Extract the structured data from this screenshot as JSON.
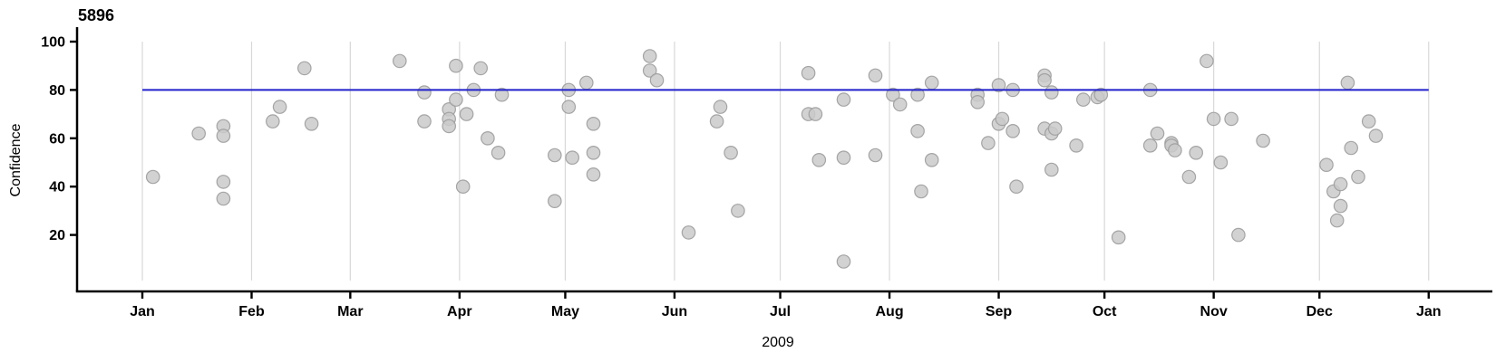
{
  "chart": {
    "title": "5896",
    "ylabel": "Confidence",
    "xlabel": "2009"
  },
  "chart_data": {
    "type": "scatter",
    "title": "5896",
    "xlabel": "2009",
    "ylabel": "Confidence",
    "x_axis": {
      "year": "2009",
      "tick_labels": [
        "Jan",
        "Feb",
        "Mar",
        "Apr",
        "May",
        "Jun",
        "Jul",
        "Aug",
        "Sep",
        "Oct",
        "Nov",
        "Dec",
        "Jan"
      ],
      "range_days": [
        0,
        365
      ]
    },
    "y_axis": {
      "ticks": [
        20,
        40,
        60,
        80,
        100
      ],
      "range": [
        -4,
        106
      ]
    },
    "grid": "vertical-month-gridlines-only",
    "legend": "none",
    "reference_line": {
      "y": 80,
      "color": "#2222cc"
    },
    "colors": {
      "point_fill": "#cacaca",
      "point_stroke": "#9c9c9c",
      "gridline": "#d8d8d8",
      "axis": "#000000",
      "background": "#ffffff"
    },
    "point_radius": 7.2,
    "points": [
      {
        "m": "Jan",
        "d": 4,
        "v": 44
      },
      {
        "m": "Jan",
        "d": 17,
        "v": 62
      },
      {
        "m": "Jan",
        "d": 24,
        "v": 65
      },
      {
        "m": "Jan",
        "d": 24,
        "v": 61
      },
      {
        "m": "Jan",
        "d": 24,
        "v": 42
      },
      {
        "m": "Jan",
        "d": 24,
        "v": 35
      },
      {
        "m": "Feb",
        "d": 7,
        "v": 67
      },
      {
        "m": "Feb",
        "d": 9,
        "v": 73
      },
      {
        "m": "Feb",
        "d": 16,
        "v": 89
      },
      {
        "m": "Feb",
        "d": 18,
        "v": 66
      },
      {
        "m": "Mar",
        "d": 15,
        "v": 92
      },
      {
        "m": "Mar",
        "d": 22,
        "v": 79
      },
      {
        "m": "Mar",
        "d": 22,
        "v": 67
      },
      {
        "m": "Mar",
        "d": 29,
        "v": 72
      },
      {
        "m": "Mar",
        "d": 29,
        "v": 68
      },
      {
        "m": "Mar",
        "d": 29,
        "v": 65
      },
      {
        "m": "Mar",
        "d": 31,
        "v": 90
      },
      {
        "m": "Mar",
        "d": 31,
        "v": 76
      },
      {
        "m": "Apr",
        "d": 2,
        "v": 40
      },
      {
        "m": "Apr",
        "d": 3,
        "v": 70
      },
      {
        "m": "Apr",
        "d": 5,
        "v": 80
      },
      {
        "m": "Apr",
        "d": 7,
        "v": 89
      },
      {
        "m": "Apr",
        "d": 9,
        "v": 60
      },
      {
        "m": "Apr",
        "d": 12,
        "v": 54
      },
      {
        "m": "Apr",
        "d": 13,
        "v": 78
      },
      {
        "m": "Apr",
        "d": 28,
        "v": 53
      },
      {
        "m": "Apr",
        "d": 28,
        "v": 34
      },
      {
        "m": "May",
        "d": 2,
        "v": 80
      },
      {
        "m": "May",
        "d": 2,
        "v": 73
      },
      {
        "m": "May",
        "d": 3,
        "v": 52
      },
      {
        "m": "May",
        "d": 7,
        "v": 83
      },
      {
        "m": "May",
        "d": 9,
        "v": 66
      },
      {
        "m": "May",
        "d": 9,
        "v": 54
      },
      {
        "m": "May",
        "d": 9,
        "v": 45
      },
      {
        "m": "May",
        "d": 25,
        "v": 94
      },
      {
        "m": "May",
        "d": 25,
        "v": 88
      },
      {
        "m": "May",
        "d": 27,
        "v": 84
      },
      {
        "m": "Jun",
        "d": 5,
        "v": 21
      },
      {
        "m": "Jun",
        "d": 13,
        "v": 67
      },
      {
        "m": "Jun",
        "d": 14,
        "v": 73
      },
      {
        "m": "Jun",
        "d": 17,
        "v": 54
      },
      {
        "m": "Jun",
        "d": 19,
        "v": 30
      },
      {
        "m": "Jul",
        "d": 9,
        "v": 87
      },
      {
        "m": "Jul",
        "d": 9,
        "v": 70
      },
      {
        "m": "Jul",
        "d": 11,
        "v": 70
      },
      {
        "m": "Jul",
        "d": 12,
        "v": 51
      },
      {
        "m": "Jul",
        "d": 19,
        "v": 76
      },
      {
        "m": "Jul",
        "d": 19,
        "v": 52
      },
      {
        "m": "Jul",
        "d": 19,
        "v": 9
      },
      {
        "m": "Jul",
        "d": 28,
        "v": 86
      },
      {
        "m": "Jul",
        "d": 28,
        "v": 53
      },
      {
        "m": "Aug",
        "d": 2,
        "v": 78
      },
      {
        "m": "Aug",
        "d": 4,
        "v": 74
      },
      {
        "m": "Aug",
        "d": 9,
        "v": 78
      },
      {
        "m": "Aug",
        "d": 9,
        "v": 63
      },
      {
        "m": "Aug",
        "d": 10,
        "v": 38
      },
      {
        "m": "Aug",
        "d": 13,
        "v": 83
      },
      {
        "m": "Aug",
        "d": 13,
        "v": 51
      },
      {
        "m": "Aug",
        "d": 26,
        "v": 78
      },
      {
        "m": "Aug",
        "d": 26,
        "v": 75
      },
      {
        "m": "Aug",
        "d": 29,
        "v": 58
      },
      {
        "m": "Sep",
        "d": 1,
        "v": 82
      },
      {
        "m": "Sep",
        "d": 1,
        "v": 66
      },
      {
        "m": "Sep",
        "d": 2,
        "v": 68
      },
      {
        "m": "Sep",
        "d": 5,
        "v": 80
      },
      {
        "m": "Sep",
        "d": 5,
        "v": 63
      },
      {
        "m": "Sep",
        "d": 6,
        "v": 40
      },
      {
        "m": "Sep",
        "d": 14,
        "v": 86
      },
      {
        "m": "Sep",
        "d": 14,
        "v": 84
      },
      {
        "m": "Sep",
        "d": 14,
        "v": 64
      },
      {
        "m": "Sep",
        "d": 16,
        "v": 79
      },
      {
        "m": "Sep",
        "d": 16,
        "v": 47
      },
      {
        "m": "Sep",
        "d": 16,
        "v": 62
      },
      {
        "m": "Sep",
        "d": 17,
        "v": 64
      },
      {
        "m": "Sep",
        "d": 23,
        "v": 57
      },
      {
        "m": "Sep",
        "d": 25,
        "v": 76
      },
      {
        "m": "Sep",
        "d": 29,
        "v": 77
      },
      {
        "m": "Sep",
        "d": 30,
        "v": 78
      },
      {
        "m": "Oct",
        "d": 5,
        "v": 19
      },
      {
        "m": "Oct",
        "d": 14,
        "v": 80
      },
      {
        "m": "Oct",
        "d": 14,
        "v": 57
      },
      {
        "m": "Oct",
        "d": 16,
        "v": 62
      },
      {
        "m": "Oct",
        "d": 20,
        "v": 58
      },
      {
        "m": "Oct",
        "d": 20,
        "v": 57
      },
      {
        "m": "Oct",
        "d": 21,
        "v": 55
      },
      {
        "m": "Oct",
        "d": 25,
        "v": 44
      },
      {
        "m": "Oct",
        "d": 27,
        "v": 54
      },
      {
        "m": "Oct",
        "d": 30,
        "v": 92
      },
      {
        "m": "Nov",
        "d": 1,
        "v": 68
      },
      {
        "m": "Nov",
        "d": 3,
        "v": 50
      },
      {
        "m": "Nov",
        "d": 6,
        "v": 68
      },
      {
        "m": "Nov",
        "d": 8,
        "v": 20
      },
      {
        "m": "Nov",
        "d": 15,
        "v": 59
      },
      {
        "m": "Dec",
        "d": 3,
        "v": 49
      },
      {
        "m": "Dec",
        "d": 5,
        "v": 38
      },
      {
        "m": "Dec",
        "d": 6,
        "v": 26
      },
      {
        "m": "Dec",
        "d": 7,
        "v": 41
      },
      {
        "m": "Dec",
        "d": 7,
        "v": 32
      },
      {
        "m": "Dec",
        "d": 9,
        "v": 83
      },
      {
        "m": "Dec",
        "d": 10,
        "v": 56
      },
      {
        "m": "Dec",
        "d": 12,
        "v": 44
      },
      {
        "m": "Dec",
        "d": 15,
        "v": 67
      },
      {
        "m": "Dec",
        "d": 17,
        "v": 61
      }
    ]
  }
}
